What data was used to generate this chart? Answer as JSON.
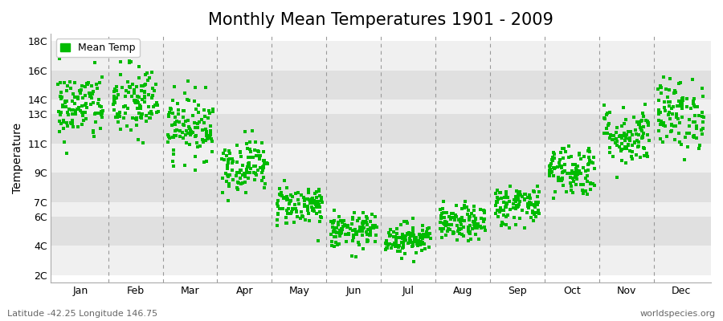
{
  "title": "Monthly Mean Temperatures 1901 - 2009",
  "ylabel": "Temperature",
  "subtitle_left": "Latitude -42.25 Longitude 146.75",
  "subtitle_right": "worldspecies.org",
  "legend_label": "Mean Temp",
  "dot_color": "#00BB00",
  "background_color": "#FFFFFF",
  "band_color_light": "#F0F0F0",
  "band_color_dark": "#E0E0E0",
  "vline_color": "#999999",
  "ytick_labels": [
    "2C",
    "4C",
    "6C",
    "7C",
    "9C",
    "11C",
    "13C",
    "14C",
    "16C",
    "18C"
  ],
  "ytick_values": [
    2,
    4,
    6,
    7,
    9,
    11,
    13,
    14,
    16,
    18
  ],
  "ylim": [
    1.5,
    18.5
  ],
  "months": [
    "Jan",
    "Feb",
    "Mar",
    "Apr",
    "May",
    "Jun",
    "Jul",
    "Aug",
    "Sep",
    "Oct",
    "Nov",
    "Dec"
  ],
  "mean_temps": [
    13.5,
    13.8,
    12.2,
    9.5,
    6.8,
    5.0,
    4.5,
    5.5,
    6.8,
    9.2,
    11.5,
    13.0
  ],
  "std_temps": [
    1.2,
    1.3,
    1.1,
    0.9,
    0.7,
    0.6,
    0.55,
    0.6,
    0.7,
    0.9,
    1.0,
    1.2
  ],
  "n_years": 109,
  "seed": 42,
  "marker_size": 5,
  "title_fontsize": 15,
  "axis_fontsize": 10,
  "tick_fontsize": 9
}
